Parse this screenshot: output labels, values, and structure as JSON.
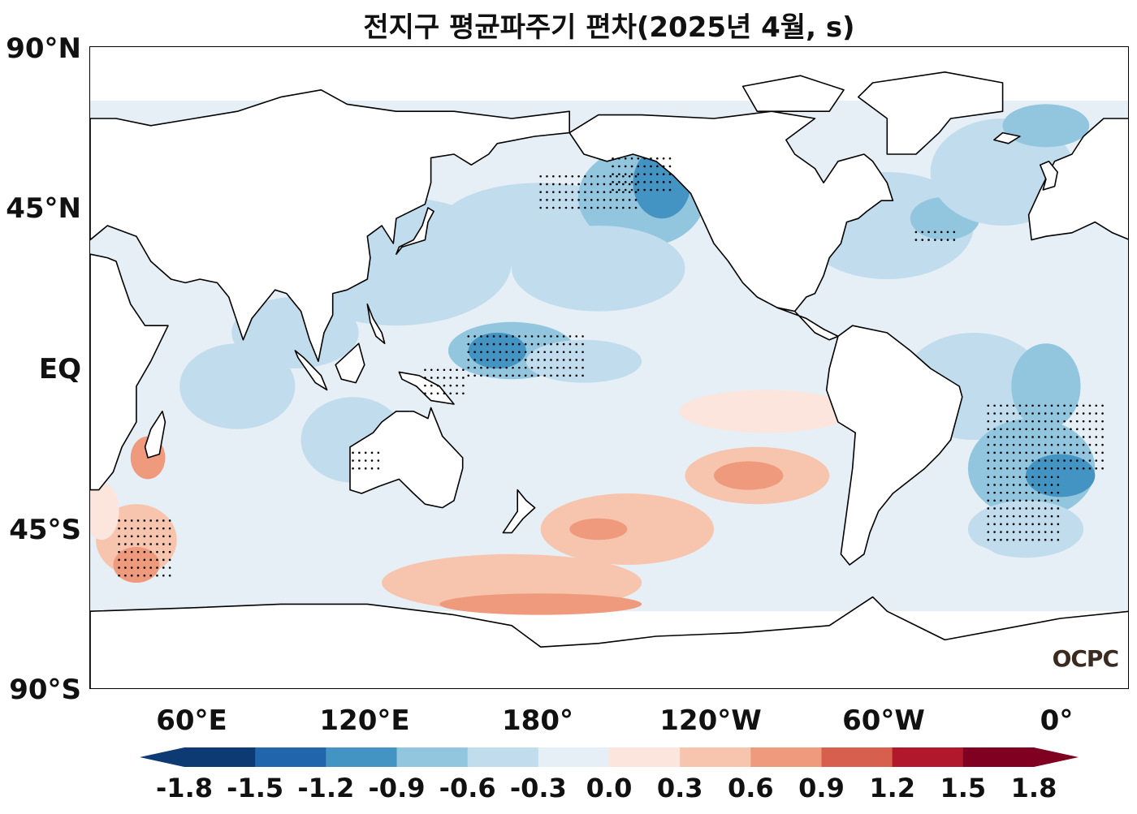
{
  "title": "전지구 평균파주기 편차(2025년 4월, s)",
  "logo": "OCPC",
  "axes": {
    "y_ticks": [
      "90°N",
      "45°N",
      "EQ",
      "45°S",
      "90°S"
    ],
    "x_ticks": [
      "60°E",
      "120°E",
      "180°",
      "120°W",
      "60°W",
      "0°"
    ]
  },
  "chart_data": {
    "type": "heatmap",
    "title": "전지구 평균파주기 편차(2025년 4월, s)",
    "projection": "equirectangular, centered 204°E",
    "lon_range": [
      24,
      384
    ],
    "lat_range": [
      -90,
      90
    ],
    "unit": "s",
    "colorbar": {
      "levels": [
        -1.8,
        -1.5,
        -1.2,
        -0.9,
        -0.6,
        -0.3,
        0.0,
        0.3,
        0.6,
        0.9,
        1.2,
        1.5,
        1.8
      ],
      "tick_labels": [
        "-1.8",
        "-1.5",
        "-1.2",
        "-0.9",
        "-0.6",
        "-0.3",
        "0.0",
        "0.3",
        "0.6",
        "0.9",
        "1.2",
        "1.5",
        "1.8"
      ],
      "colors": [
        "#0d3a72",
        "#2166ac",
        "#4393c3",
        "#92c5de",
        "#c1dcec",
        "#e6eff5",
        "#fbe5dc",
        "#f7c4ad",
        "#ef9a7c",
        "#d6604d",
        "#b2182b",
        "#7f0020"
      ],
      "extend": "both"
    },
    "regions": [
      {
        "name": "North Pacific negative anomaly",
        "value": -0.9,
        "lon": 215,
        "lat": 52
      },
      {
        "name": "Gulf of Alaska strong negative",
        "value": -1.2,
        "lon": 215,
        "lat": 52
      },
      {
        "name": "Western tropical Pacific negative",
        "value": -1.0,
        "lon": 165,
        "lat": 5
      },
      {
        "name": "North Atlantic negative",
        "value": -0.6,
        "lon": 320,
        "lat": 40
      },
      {
        "name": "South Atlantic strong negative",
        "value": -1.2,
        "lon": 355,
        "lat": -30
      },
      {
        "name": "Southeast Pacific positive",
        "value": 0.6,
        "lon": 255,
        "lat": -30
      },
      {
        "name": "Southern Ocean south of Australia positive",
        "value": 0.5,
        "lon": 165,
        "lat": -60
      },
      {
        "name": "Southwest Indian Ocean positive",
        "value": 0.6,
        "lon": 40,
        "lat": -50
      }
    ],
    "stippling": "statistically significant areas"
  }
}
